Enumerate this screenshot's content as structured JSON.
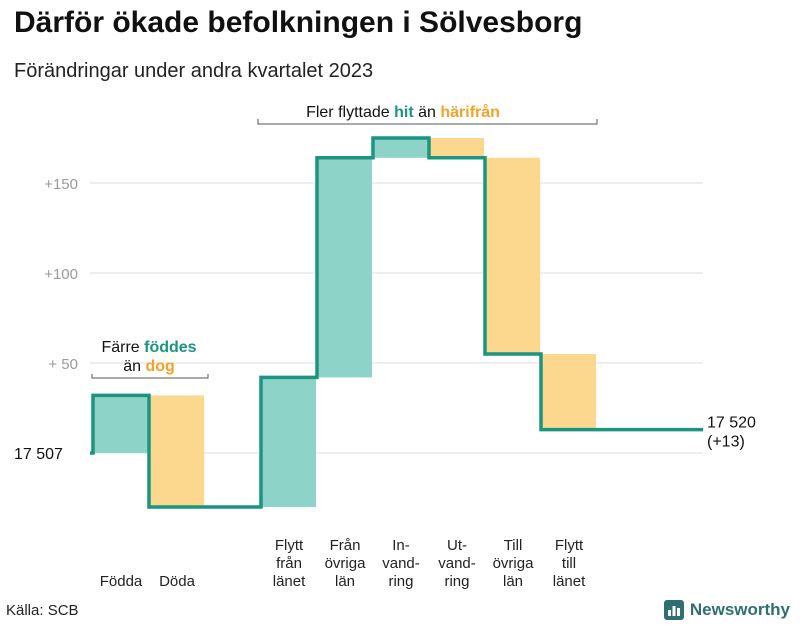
{
  "title": "Därför ökade befolkningen i Sölvesborg",
  "subtitle": "Förändringar under andra kvartalet 2023",
  "source": "Källa: SCB",
  "brand": {
    "name": "Newsworthy",
    "icon": "bar-chart-logo-icon"
  },
  "colors": {
    "increase": "#8dd3c8",
    "decrease": "#fbd88e",
    "line": "#1b9480",
    "highlight_increase": "#1b9480",
    "highlight_decrease": "#f2a328",
    "grid": "#dddddd",
    "tick_text": "#9a9a9a"
  },
  "annotations": {
    "births": {
      "line1_prefix": "Färre ",
      "line1_highlight": "föddes",
      "line2_prefix": "än ",
      "line2_highlight": "dog"
    },
    "moves": {
      "prefix": "Fler flyttade ",
      "highlight_in": "hit",
      "middle": " än ",
      "highlight_out": "härifrån"
    }
  },
  "chart_data": {
    "type": "waterfall",
    "start_label": "17  507",
    "end_label_value": "17 520",
    "end_label_change": "(+13)",
    "start": 0,
    "end": 13,
    "ylim": [
      -35,
      175
    ],
    "yticks": [
      {
        "value": 150,
        "label": "+150"
      },
      {
        "value": 100,
        "label": "+100"
      },
      {
        "value": 50,
        "label": "+  50"
      },
      {
        "value": 0,
        "label": ""
      }
    ],
    "steps": [
      {
        "lines": [
          "Födda"
        ],
        "delta": 32,
        "direction": "increase"
      },
      {
        "lines": [
          "Döda"
        ],
        "delta": -62,
        "direction": "decrease"
      },
      {
        "lines": [
          "",
          "",
          ""
        ],
        "delta": 0,
        "direction": "none"
      },
      {
        "lines": [
          "Flytt",
          "från",
          "länet"
        ],
        "delta": 72,
        "direction": "increase"
      },
      {
        "lines": [
          "Från",
          "övriga",
          "län"
        ],
        "delta": 122,
        "direction": "increase"
      },
      {
        "lines": [
          "In-",
          "vand-",
          "ring"
        ],
        "delta": 11,
        "direction": "increase"
      },
      {
        "lines": [
          "Ut-",
          "vand-",
          "ring"
        ],
        "delta": -11,
        "direction": "decrease"
      },
      {
        "lines": [
          "Till",
          "övriga",
          "län"
        ],
        "delta": -109,
        "direction": "decrease"
      },
      {
        "lines": [
          "Flytt",
          "till",
          "länet"
        ],
        "delta": -42,
        "direction": "decrease"
      }
    ]
  }
}
